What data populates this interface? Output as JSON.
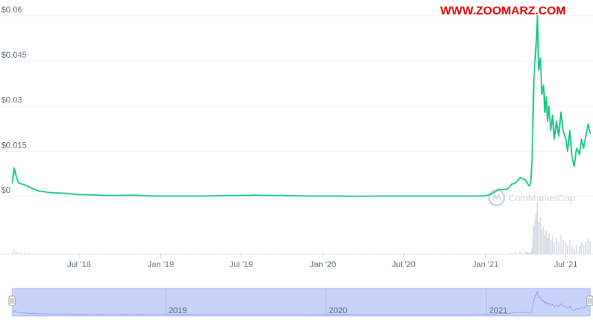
{
  "watermark": "WWW.ZOOMARZ.COM",
  "brand": "CoinMarketCap",
  "colors": {
    "line": "#16c784",
    "grid": "#eff2f5",
    "volume": "#d9dde5",
    "navigator_fill": "#c9d2f8",
    "navigator_border": "#a8b4ee",
    "watermark": "#e60000"
  },
  "navigator": {
    "labels": [
      "2019",
      "2020",
      "2021"
    ]
  },
  "chart_data": {
    "type": "line",
    "title": "",
    "xlabel": "",
    "ylabel": "",
    "y_ticks": [
      "$0",
      "$0.015",
      "$0.03",
      "$0.045",
      "$0.06"
    ],
    "x_ticks": [
      "Jul '18",
      "Jan '19",
      "Jul '19",
      "Jan '20",
      "Jul '20",
      "Jan '21",
      "Jul '21"
    ],
    "ylim": [
      0,
      0.06
    ],
    "xlim": [
      "2018-02-01",
      "2021-08-25"
    ],
    "grid": true,
    "series": [
      {
        "x": [
          "2018-02-01",
          "2018-02-05",
          "2018-02-10",
          "2018-02-15",
          "2018-02-20",
          "2018-03-01",
          "2018-03-10",
          "2018-03-20",
          "2018-04-01",
          "2018-04-15",
          "2018-05-01",
          "2018-05-15",
          "2018-06-01",
          "2018-06-15",
          "2018-07-01",
          "2018-08-01",
          "2018-09-01",
          "2018-10-01",
          "2018-11-01",
          "2018-12-01",
          "2019-01-01",
          "2019-02-01",
          "2019-03-01",
          "2019-04-01",
          "2019-05-01",
          "2019-06-01",
          "2019-07-01",
          "2019-08-01",
          "2019-09-01",
          "2019-10-01",
          "2019-11-01",
          "2019-12-01",
          "2020-01-01",
          "2020-02-01",
          "2020-03-01",
          "2020-04-01",
          "2020-05-01",
          "2020-06-01",
          "2020-07-01",
          "2020-08-01",
          "2020-09-01",
          "2020-10-01",
          "2020-11-01",
          "2020-12-01",
          "2021-01-01",
          "2021-01-15",
          "2021-02-01",
          "2021-02-10",
          "2021-02-20",
          "2021-03-01",
          "2021-03-10",
          "2021-03-20",
          "2021-04-01",
          "2021-04-05",
          "2021-04-08",
          "2021-04-10",
          "2021-04-13",
          "2021-04-16",
          "2021-04-18",
          "2021-04-20",
          "2021-04-22",
          "2021-04-25",
          "2021-04-28",
          "2021-05-01",
          "2021-05-05",
          "2021-05-08",
          "2021-05-12",
          "2021-05-15",
          "2021-05-18",
          "2021-05-21",
          "2021-05-24",
          "2021-05-28",
          "2021-06-01",
          "2021-06-05",
          "2021-06-10",
          "2021-06-15",
          "2021-06-20",
          "2021-06-25",
          "2021-07-01",
          "2021-07-05",
          "2021-07-10",
          "2021-07-15",
          "2021-07-20",
          "2021-07-25",
          "2021-08-01",
          "2021-08-05",
          "2021-08-10",
          "2021-08-15",
          "2021-08-20",
          "2021-08-25"
        ],
        "values": [
          0.0045,
          0.0095,
          0.0065,
          0.0045,
          0.0042,
          0.0038,
          0.0032,
          0.0025,
          0.0018,
          0.0015,
          0.0012,
          0.0011,
          0.001,
          0.0008,
          0.0006,
          0.0005,
          0.0003,
          0.0003,
          0.0004,
          0.0002,
          0.0001,
          0.0001,
          0.0001,
          0.0001,
          0.0002,
          0.0003,
          0.0003,
          0.0004,
          0.0003,
          0.0003,
          0.0002,
          0.0001,
          0.0001,
          0.0001,
          5e-05,
          5e-05,
          0.0001,
          0.0001,
          0.0001,
          0.0001,
          0.0001,
          0.0001,
          0.0001,
          0.0001,
          0.0002,
          0.0008,
          0.0024,
          0.0022,
          0.0025,
          0.004,
          0.0045,
          0.0062,
          0.0055,
          0.0045,
          0.0038,
          0.0035,
          0.0045,
          0.012,
          0.026,
          0.038,
          0.044,
          0.05,
          0.06,
          0.042,
          0.046,
          0.034,
          0.037,
          0.028,
          0.033,
          0.025,
          0.03,
          0.022,
          0.027,
          0.019,
          0.025,
          0.02,
          0.028,
          0.022,
          0.019,
          0.015,
          0.022,
          0.013,
          0.01,
          0.016,
          0.014,
          0.019,
          0.016,
          0.02,
          0.024,
          0.021
        ]
      }
    ]
  }
}
